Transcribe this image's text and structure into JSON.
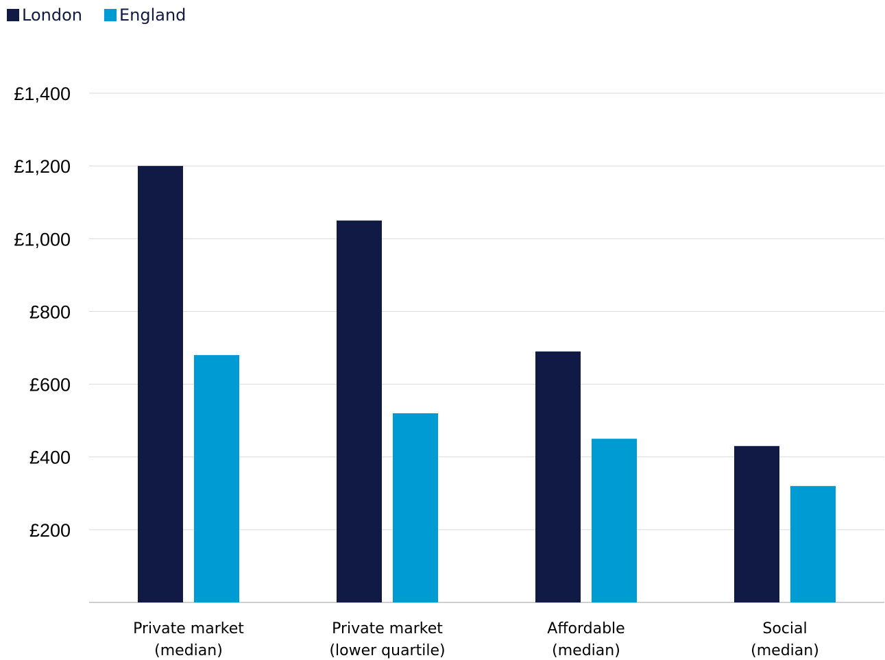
{
  "chart_data": {
    "type": "bar",
    "title": "",
    "xlabel": "",
    "ylabel": "",
    "categories": [
      [
        "Private market",
        "(median)"
      ],
      [
        "Private market",
        "(lower quartile)"
      ],
      [
        "Affordable",
        "(median)"
      ],
      [
        "Social",
        "(median)"
      ]
    ],
    "series": [
      {
        "name": "London",
        "color": "#111a44",
        "values": [
          1200,
          1050,
          690,
          430
        ]
      },
      {
        "name": "England",
        "color": "#009bd3",
        "values": [
          680,
          520,
          450,
          320
        ]
      }
    ],
    "ylim": [
      0,
      1400
    ],
    "yticks": [
      200,
      400,
      600,
      800,
      1000,
      1200,
      1400
    ],
    "ytick_labels": [
      "£200",
      "£400",
      "£600",
      "£800",
      "£1,000",
      "£1,200",
      "£1,400"
    ],
    "grid": true,
    "legend_position": "top-left"
  }
}
